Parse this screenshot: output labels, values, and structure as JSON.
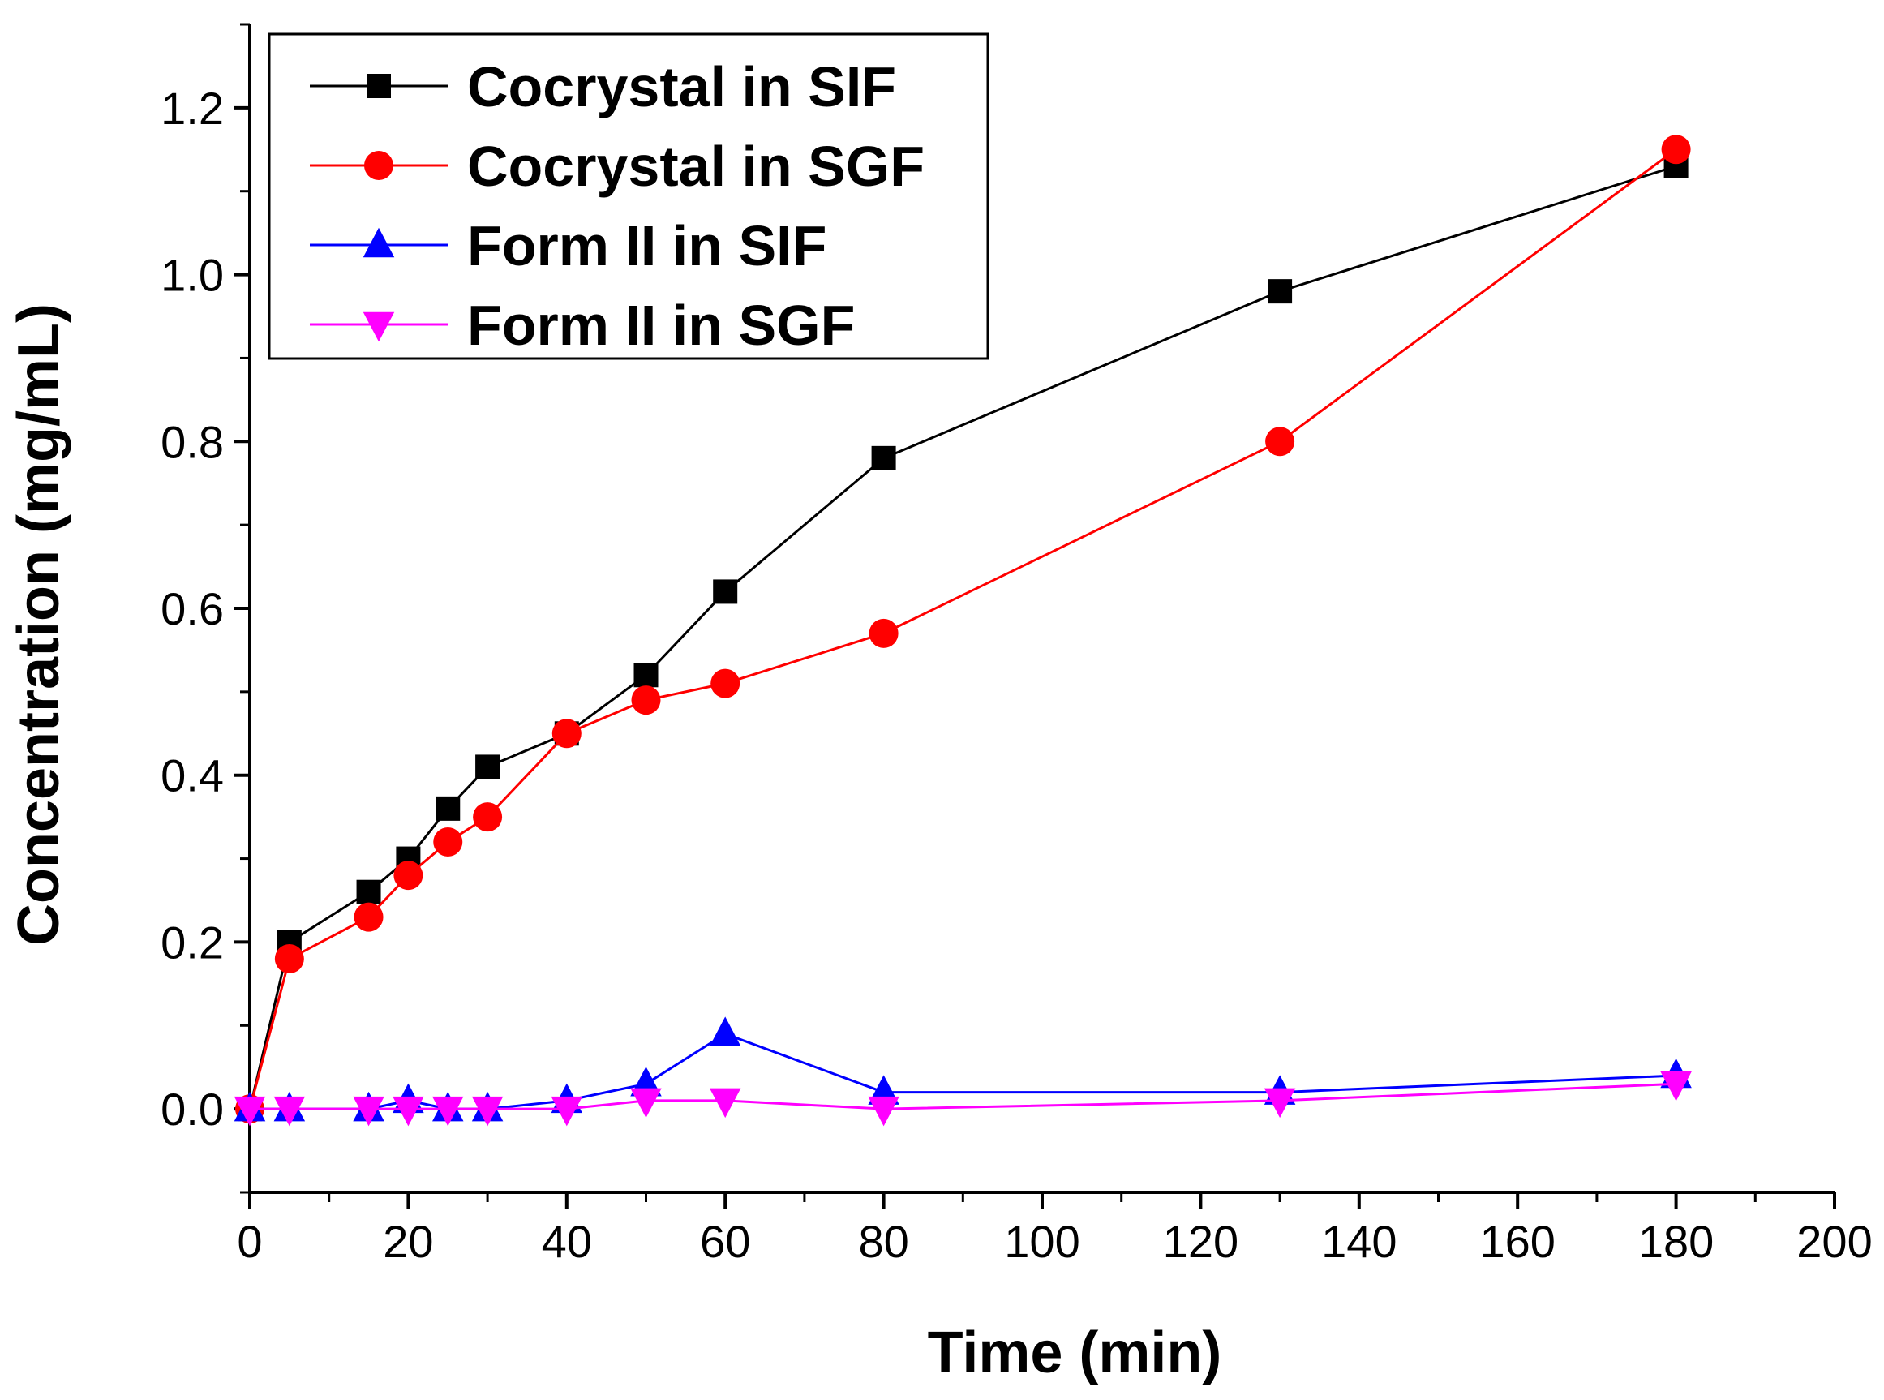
{
  "chart_data": {
    "type": "line",
    "title": "",
    "xlabel": "Time (min)",
    "ylabel": "Concentration (mg/mL)",
    "xlim": [
      0,
      200
    ],
    "ylim": [
      -0.1,
      1.3
    ],
    "xticks": [
      0,
      20,
      40,
      60,
      80,
      100,
      120,
      140,
      160,
      180,
      200
    ],
    "xtick_labels": [
      "0",
      "20",
      "40",
      "60",
      "80",
      "100",
      "120",
      "140",
      "160",
      "180",
      "200"
    ],
    "yticks": [
      0.0,
      0.2,
      0.4,
      0.6,
      0.8,
      1.0,
      1.2
    ],
    "ytick_labels": [
      "0.0",
      "0.2",
      "0.4",
      "0.6",
      "0.8",
      "1.0",
      "1.2"
    ],
    "grid": false,
    "legend_position": "top-left",
    "x": [
      0,
      5,
      15,
      20,
      25,
      30,
      40,
      50,
      60,
      80,
      130,
      180
    ],
    "series": [
      {
        "name": "Cocrystal in SIF",
        "color": "#000000",
        "marker": "square",
        "values": [
          0.0,
          0.2,
          0.26,
          0.3,
          0.36,
          0.41,
          0.45,
          0.52,
          0.62,
          0.78,
          0.98,
          1.13
        ]
      },
      {
        "name": "Cocrystal in SGF",
        "color": "#ff0000",
        "marker": "circle",
        "values": [
          0.0,
          0.18,
          0.23,
          0.28,
          0.32,
          0.35,
          0.45,
          0.49,
          0.51,
          0.57,
          0.8,
          1.15
        ]
      },
      {
        "name": "Form II in SIF",
        "color": "#0000ff",
        "marker": "triangle-up",
        "values": [
          0.0,
          0.0,
          0.0,
          0.01,
          0.0,
          0.0,
          0.01,
          0.03,
          0.09,
          0.02,
          0.02,
          0.04
        ]
      },
      {
        "name": "Form II in SGF",
        "color": "#ff00ff",
        "marker": "triangle-down",
        "values": [
          0.0,
          0.0,
          0.0,
          0.0,
          0.0,
          0.0,
          0.0,
          0.01,
          0.01,
          0.0,
          0.01,
          0.03
        ]
      }
    ]
  }
}
